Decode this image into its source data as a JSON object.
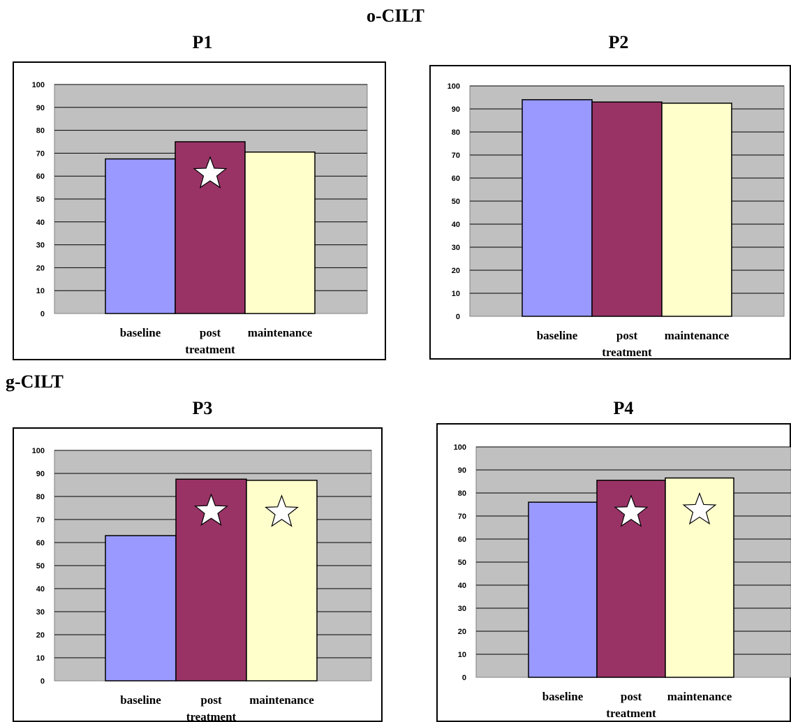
{
  "titles": {
    "group1": "o-CILT",
    "group2": "g-CILT"
  },
  "colors": {
    "baseline": "#9999ff",
    "post": "#993366",
    "maintenance": "#ffffcc",
    "plot_bg": "#c0c0c0",
    "star": "#ffffff"
  },
  "chart_data": [
    {
      "type": "bar",
      "title": "P1",
      "categories": [
        "baseline",
        "post treatment",
        "maintenance"
      ],
      "category_lines": [
        [
          "baseline"
        ],
        [
          "post",
          "treatment"
        ],
        [
          "maintenance"
        ]
      ],
      "values": [
        67.5,
        75,
        70.5
      ],
      "significant": [
        false,
        true,
        false
      ],
      "ylim": [
        0,
        100
      ],
      "yticks": [
        0,
        10,
        20,
        30,
        40,
        50,
        60,
        70,
        80,
        90,
        100
      ],
      "grid": true
    },
    {
      "type": "bar",
      "title": "P2",
      "categories": [
        "baseline",
        "post treatment",
        "maintenance"
      ],
      "category_lines": [
        [
          "baseline"
        ],
        [
          "post",
          "treatment"
        ],
        [
          "maintenance"
        ]
      ],
      "values": [
        94,
        93,
        92.5
      ],
      "significant": [
        false,
        false,
        false
      ],
      "ylim": [
        0,
        100
      ],
      "yticks": [
        0,
        10,
        20,
        30,
        40,
        50,
        60,
        70,
        80,
        90,
        100
      ],
      "grid": true
    },
    {
      "type": "bar",
      "title": "P3",
      "categories": [
        "baseline",
        "post treatment",
        "maintenance"
      ],
      "category_lines": [
        [
          "baseline"
        ],
        [
          "post",
          "treatment"
        ],
        [
          "maintenance"
        ]
      ],
      "values": [
        63,
        87.5,
        87
      ],
      "significant": [
        false,
        true,
        true
      ],
      "ylim": [
        0,
        100
      ],
      "yticks": [
        0,
        10,
        20,
        30,
        40,
        50,
        60,
        70,
        80,
        90,
        100
      ],
      "grid": true
    },
    {
      "type": "bar",
      "title": "P4",
      "categories": [
        "baseline",
        "post treatment",
        "maintenance"
      ],
      "category_lines": [
        [
          "baseline"
        ],
        [
          "post",
          "treatment"
        ],
        [
          "maintenance"
        ]
      ],
      "values": [
        76,
        85.5,
        86.5
      ],
      "significant": [
        false,
        true,
        true
      ],
      "ylim": [
        0,
        100
      ],
      "yticks": [
        0,
        10,
        20,
        30,
        40,
        50,
        60,
        70,
        80,
        90,
        100
      ],
      "grid": true
    }
  ]
}
